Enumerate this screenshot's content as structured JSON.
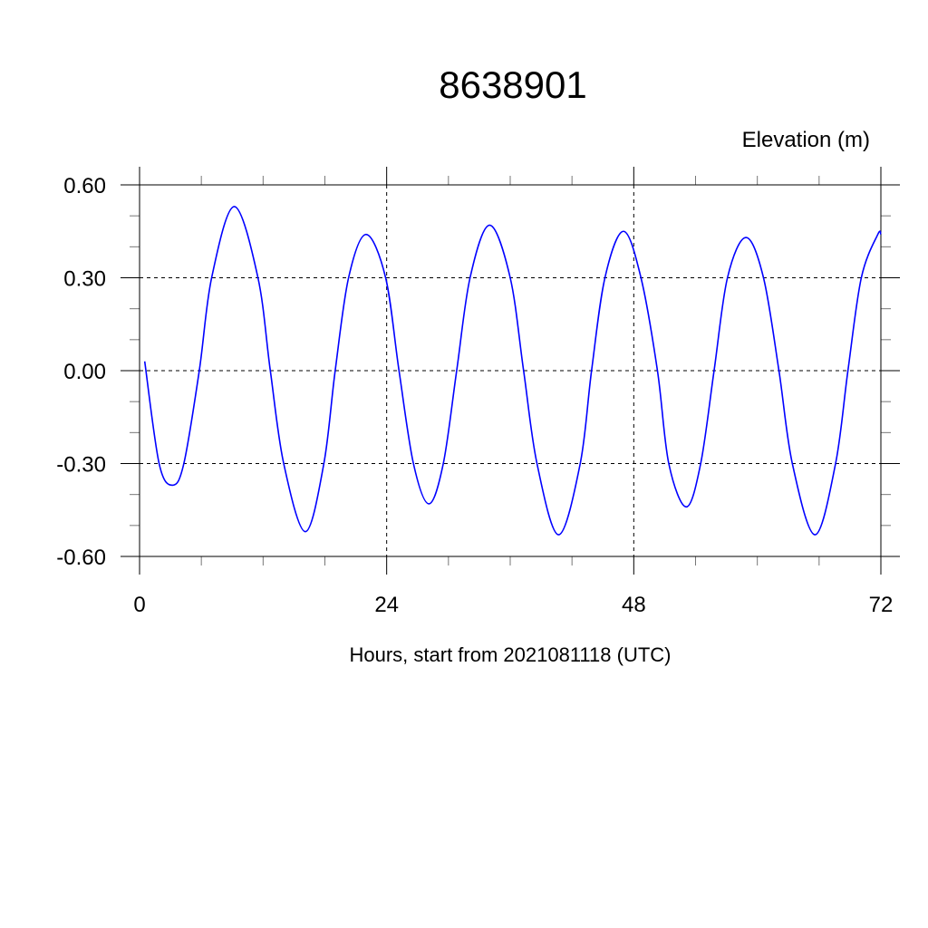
{
  "chart_data": {
    "type": "line",
    "title": "8638901",
    "ylabel": "Elevation (m)",
    "xlabel": "Hours, start from 2021081118 (UTC)",
    "xlim": [
      0,
      72
    ],
    "ylim": [
      -0.6,
      0.6
    ],
    "x_major_ticks": [
      0,
      24,
      48,
      72
    ],
    "x_tick_labels": [
      "0",
      "24",
      "48",
      "72"
    ],
    "x_minor_step": 6,
    "y_major_ticks": [
      0.6,
      0.3,
      0.0,
      -0.3,
      -0.6
    ],
    "y_tick_labels": [
      "0.60",
      "0.30",
      "0.00",
      "-0.30",
      "-0.60"
    ],
    "y_minor_step": 0.1,
    "grid": true,
    "grid_style": "dashed",
    "line_color": "#0000ff",
    "series": [
      {
        "points": [
          [
            0.5,
            0.03
          ],
          [
            1.9,
            -0.3
          ],
          [
            3.2,
            -0.37
          ],
          [
            4.3,
            -0.3
          ],
          [
            5.8,
            0.0
          ],
          [
            7.0,
            0.3
          ],
          [
            9.2,
            0.53
          ],
          [
            11.5,
            0.3
          ],
          [
            12.7,
            0.0
          ],
          [
            14.0,
            -0.3
          ],
          [
            16.1,
            -0.52
          ],
          [
            17.9,
            -0.3
          ],
          [
            19.0,
            0.0
          ],
          [
            20.3,
            0.3
          ],
          [
            22.0,
            0.44
          ],
          [
            23.9,
            0.3
          ],
          [
            25.2,
            0.0
          ],
          [
            26.6,
            -0.3
          ],
          [
            28.1,
            -0.43
          ],
          [
            29.5,
            -0.3
          ],
          [
            30.8,
            0.0
          ],
          [
            32.1,
            0.3
          ],
          [
            34.0,
            0.47
          ],
          [
            36.0,
            0.3
          ],
          [
            37.3,
            0.0
          ],
          [
            38.6,
            -0.3
          ],
          [
            40.7,
            -0.53
          ],
          [
            42.8,
            -0.3
          ],
          [
            43.9,
            0.0
          ],
          [
            45.2,
            0.3
          ],
          [
            47.0,
            0.45
          ],
          [
            48.7,
            0.3
          ],
          [
            50.3,
            0.0
          ],
          [
            51.4,
            -0.3
          ],
          [
            53.1,
            -0.44
          ],
          [
            54.5,
            -0.3
          ],
          [
            55.8,
            0.0
          ],
          [
            57.1,
            0.3
          ],
          [
            58.9,
            0.43
          ],
          [
            60.6,
            0.3
          ],
          [
            62.1,
            0.0
          ],
          [
            63.4,
            -0.3
          ],
          [
            65.6,
            -0.53
          ],
          [
            67.6,
            -0.3
          ],
          [
            68.8,
            0.0
          ],
          [
            70.1,
            0.3
          ],
          [
            71.7,
            0.44
          ],
          [
            72.0,
            0.44
          ]
        ]
      }
    ]
  }
}
